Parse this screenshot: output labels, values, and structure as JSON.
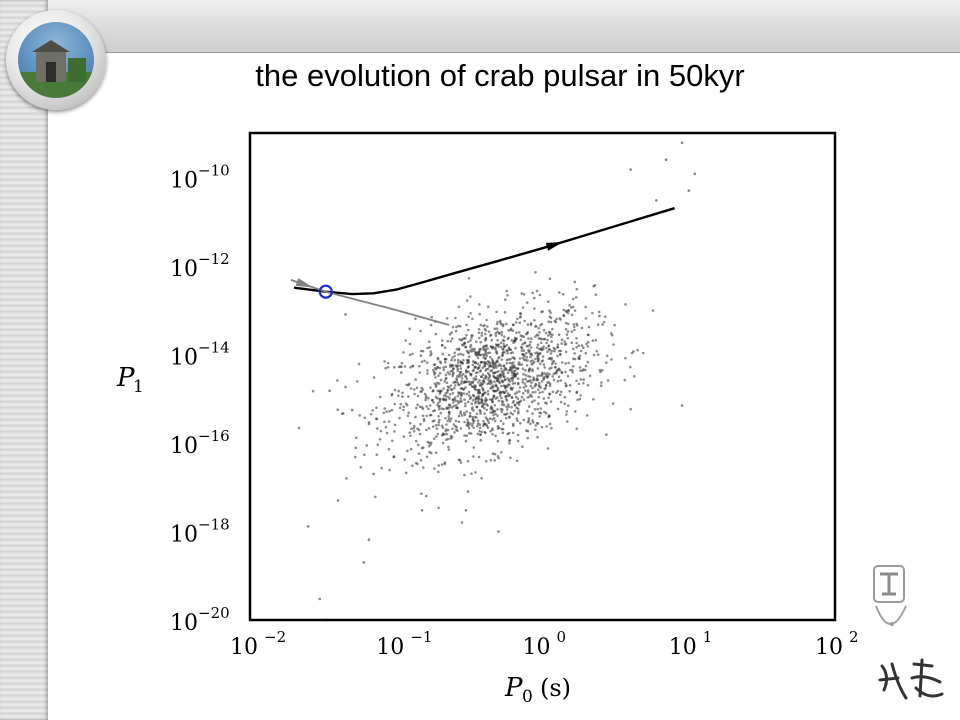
{
  "slide": {
    "title": "the evolution of crab pulsar in 50kyr"
  },
  "colors": {
    "points": "#303030",
    "track_main": "#000000",
    "track_secondary": "#808080",
    "marker": "#1a2fd0"
  },
  "chart_data": {
    "type": "scatter",
    "xlabel": "P_0 (s)",
    "ylabel": "P_1",
    "x_scale": "log",
    "y_scale": "log",
    "xlim": [
      0.01,
      100
    ],
    "ylim": [
      1e-20,
      1e-09
    ],
    "x_ticks": [
      {
        "base": "10",
        "exp": "−2",
        "value": 0.01
      },
      {
        "base": "10",
        "exp": "−1",
        "value": 0.1
      },
      {
        "base": "10",
        "exp": "0",
        "value": 1
      },
      {
        "base": "10",
        "exp": "1",
        "value": 10
      },
      {
        "base": "10",
        "exp": "2",
        "value": 100
      }
    ],
    "y_ticks": [
      {
        "base": "10",
        "exp": "−10",
        "value": 1e-10
      },
      {
        "base": "10",
        "exp": "−12",
        "value": 1e-12
      },
      {
        "base": "10",
        "exp": "−14",
        "value": 1e-14
      },
      {
        "base": "10",
        "exp": "−16",
        "value": 1e-16
      },
      {
        "base": "10",
        "exp": "−18",
        "value": 1e-18
      },
      {
        "base": "10",
        "exp": "−20",
        "value": 1e-20
      }
    ],
    "grid": false,
    "legend": "none",
    "series": [
      {
        "kind": "scatter-cloud",
        "description_of_distribution": "pulsar population",
        "center_log": [
          -0.35,
          -14.6
        ],
        "spread_log": [
          0.35,
          0.75
        ],
        "count": 1600
      },
      {
        "kind": "line",
        "style": "black-with-arrow",
        "points": [
          [
            0.02,
            3.2e-13
          ],
          [
            0.033,
            2.6e-13
          ],
          [
            0.05,
            2.3e-13
          ],
          [
            0.07,
            2.4e-13
          ],
          [
            0.1,
            2.9e-13
          ],
          [
            0.15,
            4.2e-13
          ],
          [
            0.25,
            6.8e-13
          ],
          [
            0.5,
            1.3e-12
          ],
          [
            1.0,
            2.5e-12
          ],
          [
            2.0,
            5e-12
          ],
          [
            4.0,
            1e-11
          ],
          [
            8.0,
            2e-11
          ]
        ],
        "arrow_at": 0.75
      },
      {
        "kind": "line",
        "style": "gray-with-arrow",
        "points": [
          [
            0.019,
            4.8e-13
          ],
          [
            0.033,
            2.6e-13
          ],
          [
            0.1,
            1e-13
          ],
          [
            0.23,
            4.6e-14
          ]
        ],
        "arrow_at": 0.12
      },
      {
        "kind": "marker",
        "shape": "open-circle",
        "point": [
          0.033,
          2.6e-13
        ]
      }
    ],
    "outlier_points": [
      [
        0.025,
        1.3e-18
      ],
      [
        0.03,
        3e-20
      ],
      [
        0.033,
        1e-20
      ],
      [
        0.04,
        5e-18
      ],
      [
        0.06,
        2e-19
      ],
      [
        0.065,
        6.5e-19
      ],
      [
        0.07,
        2e-17
      ],
      [
        0.05,
        5.5e-16
      ],
      [
        9.0,
        6e-10
      ],
      [
        6.0,
        3e-11
      ],
      [
        10,
        5e-11
      ],
      [
        4.0,
        1.5e-10
      ],
      [
        7.0,
        2.5e-10
      ],
      [
        11,
        1.2e-10
      ],
      [
        9.0,
        7e-16
      ],
      [
        0.035,
        1.5e-15
      ],
      [
        0.045,
        8e-14
      ],
      [
        0.15,
        3e-18
      ],
      [
        0.5,
        1e-18
      ],
      [
        0.3,
        3e-18
      ]
    ]
  }
}
